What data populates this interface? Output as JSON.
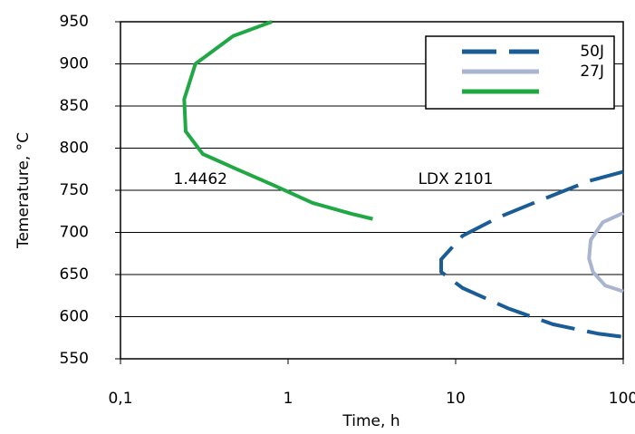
{
  "chart_data": {
    "type": "line",
    "xlabel": "Time, h",
    "ylabel": "Temerature, °C",
    "xscale": "log",
    "xlim": [
      0.1,
      100
    ],
    "xticks": [
      {
        "value": 0.1,
        "label": "0,1"
      },
      1,
      10,
      100
    ],
    "ylim": [
      550,
      950
    ],
    "yticks": [
      550,
      600,
      650,
      700,
      750,
      800,
      850,
      900,
      950
    ],
    "grid": true,
    "annotations": [
      {
        "text": "1.4462",
        "x": 0.3,
        "y": 763
      },
      {
        "text": "LDX 2101",
        "x": 10,
        "y": 763
      }
    ],
    "series": [
      {
        "name": "50J",
        "color": "#1a5c96",
        "dashed": true,
        "x": [
          100,
          62.5,
          32.8,
          18.1,
          11,
          8.2,
          8.2,
          11,
          20.5,
          38,
          70,
          100
        ],
        "values": [
          772,
          761,
          739,
          718,
          696,
          668,
          653,
          634,
          610,
          591,
          580,
          576
        ]
      },
      {
        "name": "27J",
        "color": "#a9b4d0",
        "dashed": false,
        "x": [
          100,
          75.5,
          64,
          62.5,
          66,
          78,
          100
        ],
        "values": [
          723,
          712,
          691,
          669,
          653,
          637,
          630
        ]
      },
      {
        "name": null,
        "color": "#21a845",
        "dashed": false,
        "x": [
          0.8,
          0.47,
          0.28,
          0.24,
          0.245,
          0.31,
          0.47,
          0.82,
          1.4,
          2.4,
          3.2
        ],
        "values": [
          950,
          933,
          900,
          858,
          820,
          793,
          777,
          756,
          735,
          722,
          716
        ]
      }
    ]
  }
}
